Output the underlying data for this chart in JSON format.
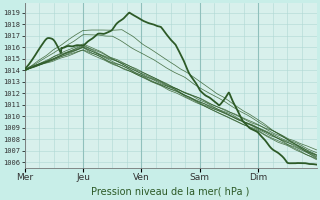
{
  "xlabel": "Pression niveau de la mer( hPa )",
  "background_color": "#c8eee8",
  "plot_bg_color": "#d8f0ec",
  "grid_color": "#b0d8d4",
  "grid_color_major": "#90c0bc",
  "line_color": "#2d5a27",
  "ylim": [
    1005.5,
    1019.8
  ],
  "yticks": [
    1006,
    1007,
    1008,
    1009,
    1010,
    1011,
    1012,
    1013,
    1014,
    1015,
    1016,
    1017,
    1018,
    1019
  ],
  "day_labels": [
    "Mer",
    "Jeu",
    "Ven",
    "Sam",
    "Dim"
  ],
  "day_positions": [
    0,
    24,
    48,
    72,
    96
  ],
  "total_hours": 120,
  "xlabel_fontsize": 7.0,
  "ylabel_fontsize": 5.5,
  "xlabel_color": "#2d5a27"
}
